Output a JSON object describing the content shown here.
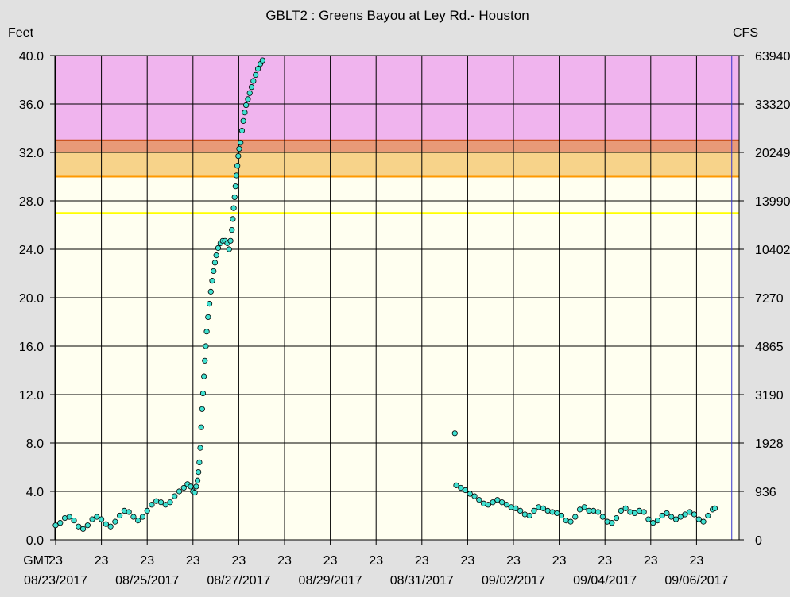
{
  "chart_data": {
    "type": "scatter",
    "title": "GBLT2  :  Greens Bayou at Ley Rd.- Houston",
    "ylabel": "Feet",
    "y2label": "CFS",
    "ylim": [
      0,
      40
    ],
    "yticks": [
      "0.0",
      "4.0",
      "8.0",
      "12.0",
      "16.0",
      "20.0",
      "24.0",
      "28.0",
      "32.0",
      "36.0",
      "40.0"
    ],
    "y2ticks": [
      "0",
      "936",
      "1928",
      "3190",
      "4865",
      "7270",
      "10402",
      "13990",
      "20249",
      "33320",
      "63940"
    ],
    "tz_label": "GMT",
    "xlim_days": [
      0,
      14.4
    ],
    "x_ticks": [
      {
        "day": 0,
        "hour": "23",
        "date": "08/23/2017"
      },
      {
        "day": 1,
        "hour": "23",
        "date": ""
      },
      {
        "day": 2,
        "hour": "23",
        "date": "08/25/2017"
      },
      {
        "day": 3,
        "hour": "23",
        "date": ""
      },
      {
        "day": 4,
        "hour": "23",
        "date": "08/27/2017"
      },
      {
        "day": 5,
        "hour": "23",
        "date": ""
      },
      {
        "day": 6,
        "hour": "23",
        "date": "08/29/2017"
      },
      {
        "day": 7,
        "hour": "23",
        "date": ""
      },
      {
        "day": 8,
        "hour": "23",
        "date": "08/31/2017"
      },
      {
        "day": 9,
        "hour": "23",
        "date": ""
      },
      {
        "day": 10,
        "hour": "23",
        "date": "09/02/2017"
      },
      {
        "day": 11,
        "hour": "23",
        "date": ""
      },
      {
        "day": 12,
        "hour": "23",
        "date": "09/04/2017"
      },
      {
        "day": 13,
        "hour": "23",
        "date": ""
      },
      {
        "day": 14,
        "hour": "23",
        "date": "09/06/2017"
      }
    ],
    "grid": true,
    "flood_bands": [
      {
        "from": 33,
        "to": 40,
        "color": "#f0b4ee"
      },
      {
        "from": 32,
        "to": 33,
        "color": "#e89a78"
      },
      {
        "from": 30,
        "to": 32,
        "color": "#f7d38a"
      },
      {
        "from": 0,
        "to": 30,
        "color": "#fffff0"
      }
    ],
    "threshold_lines": [
      {
        "value": 27,
        "color": "#ffff00"
      },
      {
        "value": 30,
        "color": "#ff9900"
      },
      {
        "value": 33,
        "color": "#cc5522"
      }
    ],
    "marker_color": "#40e0d0",
    "series": [
      {
        "values": [
          [
            0.0,
            1.2
          ],
          [
            0.1,
            1.4
          ],
          [
            0.2,
            1.8
          ],
          [
            0.3,
            1.9
          ],
          [
            0.4,
            1.6
          ],
          [
            0.5,
            1.1
          ],
          [
            0.6,
            0.9
          ],
          [
            0.7,
            1.2
          ],
          [
            0.8,
            1.7
          ],
          [
            0.9,
            1.9
          ],
          [
            1.0,
            1.7
          ],
          [
            1.1,
            1.3
          ],
          [
            1.2,
            1.1
          ],
          [
            1.3,
            1.5
          ],
          [
            1.4,
            2.0
          ],
          [
            1.5,
            2.4
          ],
          [
            1.6,
            2.3
          ],
          [
            1.7,
            1.9
          ],
          [
            1.8,
            1.6
          ],
          [
            1.9,
            1.9
          ],
          [
            2.0,
            2.4
          ],
          [
            2.1,
            2.9
          ],
          [
            2.2,
            3.2
          ],
          [
            2.3,
            3.1
          ],
          [
            2.4,
            2.9
          ],
          [
            2.5,
            3.1
          ],
          [
            2.6,
            3.6
          ],
          [
            2.7,
            4.0
          ],
          [
            2.8,
            4.3
          ],
          [
            2.88,
            4.6
          ],
          [
            2.95,
            4.4
          ],
          [
            3.0,
            4.0
          ],
          [
            3.04,
            3.9
          ],
          [
            3.07,
            4.4
          ],
          [
            3.1,
            4.9
          ],
          [
            3.12,
            5.6
          ],
          [
            3.14,
            6.4
          ],
          [
            3.16,
            7.6
          ],
          [
            3.18,
            9.3
          ],
          [
            3.2,
            10.8
          ],
          [
            3.22,
            12.1
          ],
          [
            3.24,
            13.5
          ],
          [
            3.26,
            14.8
          ],
          [
            3.28,
            16.0
          ],
          [
            3.3,
            17.2
          ],
          [
            3.33,
            18.4
          ],
          [
            3.36,
            19.5
          ],
          [
            3.39,
            20.5
          ],
          [
            3.42,
            21.4
          ],
          [
            3.45,
            22.2
          ],
          [
            3.48,
            22.9
          ],
          [
            3.51,
            23.5
          ],
          [
            3.55,
            24.1
          ],
          [
            3.6,
            24.5
          ],
          [
            3.65,
            24.7
          ],
          [
            3.7,
            24.7
          ],
          [
            3.75,
            24.5
          ],
          [
            3.79,
            24.0
          ],
          [
            3.82,
            24.7
          ],
          [
            3.85,
            25.6
          ],
          [
            3.87,
            26.5
          ],
          [
            3.89,
            27.4
          ],
          [
            3.91,
            28.3
          ],
          [
            3.93,
            29.2
          ],
          [
            3.95,
            30.1
          ],
          [
            3.97,
            30.9
          ],
          [
            3.99,
            31.7
          ],
          [
            4.01,
            32.3
          ],
          [
            4.04,
            32.8
          ],
          [
            4.07,
            33.8
          ],
          [
            4.1,
            34.6
          ],
          [
            4.13,
            35.3
          ],
          [
            4.16,
            35.9
          ],
          [
            4.2,
            36.4
          ],
          [
            4.24,
            36.9
          ],
          [
            4.28,
            37.4
          ],
          [
            4.32,
            37.9
          ],
          [
            4.37,
            38.4
          ],
          [
            4.42,
            38.9
          ],
          [
            4.47,
            39.3
          ],
          [
            4.52,
            39.6
          ],
          [
            8.72,
            8.8
          ],
          [
            8.75,
            4.5
          ],
          [
            8.85,
            4.3
          ],
          [
            8.95,
            4.1
          ],
          [
            9.05,
            3.8
          ],
          [
            9.15,
            3.6
          ],
          [
            9.25,
            3.3
          ],
          [
            9.35,
            3.0
          ],
          [
            9.45,
            2.9
          ],
          [
            9.55,
            3.1
          ],
          [
            9.65,
            3.3
          ],
          [
            9.75,
            3.1
          ],
          [
            9.85,
            2.9
          ],
          [
            9.95,
            2.7
          ],
          [
            10.05,
            2.6
          ],
          [
            10.15,
            2.4
          ],
          [
            10.25,
            2.1
          ],
          [
            10.35,
            2.0
          ],
          [
            10.45,
            2.4
          ],
          [
            10.55,
            2.7
          ],
          [
            10.65,
            2.6
          ],
          [
            10.75,
            2.4
          ],
          [
            10.85,
            2.3
          ],
          [
            10.95,
            2.2
          ],
          [
            11.05,
            2.0
          ],
          [
            11.15,
            1.6
          ],
          [
            11.25,
            1.5
          ],
          [
            11.35,
            1.9
          ],
          [
            11.45,
            2.5
          ],
          [
            11.55,
            2.7
          ],
          [
            11.65,
            2.4
          ],
          [
            11.75,
            2.4
          ],
          [
            11.85,
            2.3
          ],
          [
            11.95,
            1.9
          ],
          [
            12.05,
            1.5
          ],
          [
            12.15,
            1.4
          ],
          [
            12.25,
            1.8
          ],
          [
            12.35,
            2.4
          ],
          [
            12.45,
            2.6
          ],
          [
            12.55,
            2.3
          ],
          [
            12.65,
            2.2
          ],
          [
            12.75,
            2.4
          ],
          [
            12.85,
            2.3
          ],
          [
            12.95,
            1.7
          ],
          [
            13.05,
            1.4
          ],
          [
            13.15,
            1.6
          ],
          [
            13.25,
            2.0
          ],
          [
            13.35,
            2.2
          ],
          [
            13.45,
            1.9
          ],
          [
            13.55,
            1.7
          ],
          [
            13.65,
            1.9
          ],
          [
            13.75,
            2.1
          ],
          [
            13.85,
            2.3
          ],
          [
            13.95,
            2.1
          ],
          [
            14.05,
            1.7
          ],
          [
            14.15,
            1.5
          ],
          [
            14.25,
            2.0
          ],
          [
            14.35,
            2.5
          ],
          [
            14.4,
            2.6
          ]
        ]
      }
    ]
  }
}
